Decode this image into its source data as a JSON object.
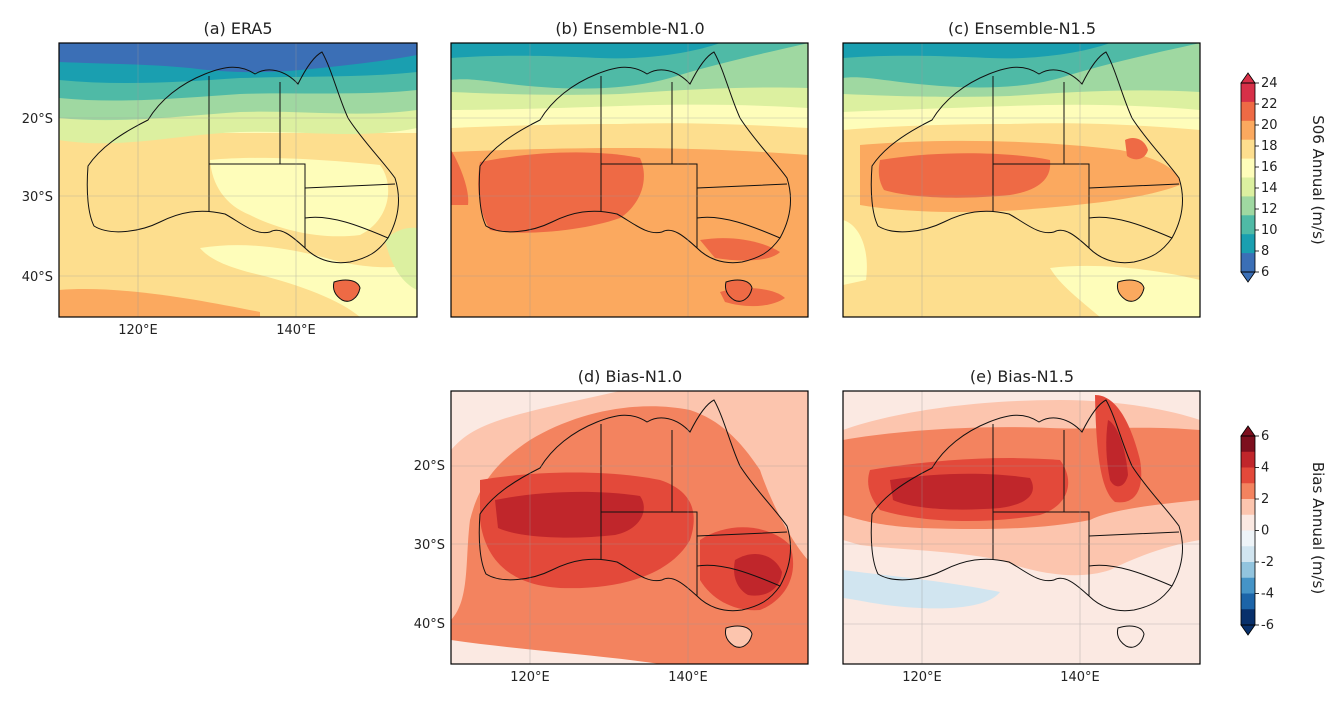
{
  "chart_data": [
    {
      "type": "heatmap",
      "panel": "a",
      "title": "(a) ERA5",
      "colorbar": "S06",
      "region": "Australia",
      "lon_range": [
        110,
        155
      ],
      "lat_range": [
        -45,
        -10
      ],
      "x_ticks": [
        "120°E",
        "140°E"
      ],
      "y_ticks": [
        "20°S",
        "30°S",
        "40°S"
      ],
      "value_range_ms": [
        6,
        20
      ],
      "features": [
        {
          "name": "northern coast",
          "value": 7
        },
        {
          "name": "inland plateau",
          "value": 16
        },
        {
          "name": "southern ocean",
          "value": 18
        }
      ]
    },
    {
      "type": "heatmap",
      "panel": "b",
      "title": "(b) Ensemble-N1.0",
      "colorbar": "S06",
      "x_ticks": [],
      "y_ticks": [],
      "value_range_ms": [
        10,
        23
      ],
      "features": [
        {
          "name": "western interior maximum",
          "value": 21
        },
        {
          "name": "southern ocean",
          "value": 19
        }
      ]
    },
    {
      "type": "heatmap",
      "panel": "c",
      "title": "(c) Ensemble-N1.5",
      "colorbar": "S06",
      "x_ticks": [],
      "y_ticks": [],
      "value_range_ms": [
        8,
        22
      ],
      "features": [
        {
          "name": "central interior maximum",
          "value": 20
        },
        {
          "name": "southern ocean",
          "value": 16
        }
      ]
    },
    {
      "type": "heatmap",
      "panel": "d",
      "title": "(d) Bias-N1.0",
      "colorbar": "Bias",
      "x_ticks": [
        "120°E",
        "140°E"
      ],
      "y_ticks": [
        "20°S",
        "30°S",
        "40°S"
      ],
      "value_range_ms": [
        0,
        5
      ],
      "features": [
        {
          "name": "central band",
          "value": 5
        },
        {
          "name": "south-east",
          "value": 5
        },
        {
          "name": "surrounding ocean",
          "value": 2
        }
      ]
    },
    {
      "type": "heatmap",
      "panel": "e",
      "title": "(e) Bias-N1.5",
      "colorbar": "Bias",
      "x_ticks": [
        "120°E",
        "140°E"
      ],
      "y_ticks": [],
      "value_range_ms": [
        -1,
        5
      ],
      "features": [
        {
          "name": "central band",
          "value": 5
        },
        {
          "name": "Cape York",
          "value": 5
        },
        {
          "name": "southern ocean",
          "value": -1
        }
      ]
    }
  ],
  "colorbars": [
    {
      "id": "S06",
      "label": "S06 Annual (m/s)",
      "ticks": [
        "6",
        "8",
        "10",
        "12",
        "14",
        "16",
        "18",
        "20",
        "22",
        "24"
      ],
      "colors": [
        "#3b6fb6",
        "#1a9fb0",
        "#4fbaa6",
        "#9fd8a1",
        "#dcf0a0",
        "#fefdba",
        "#fdde8e",
        "#fba95f",
        "#ee6a45",
        "#d73048"
      ],
      "extend": "both"
    },
    {
      "id": "Bias",
      "label": "Bias Annual (m/s)",
      "ticks": [
        "6",
        "4",
        "2",
        "0",
        "-2",
        "-4",
        "-6"
      ],
      "colors": [
        "#08306b",
        "#1c64a8",
        "#4594c7",
        "#92c4de",
        "#d1e5f0",
        "#eef4f8",
        "#fbe9e2",
        "#fcc5ae",
        "#f3835f",
        "#e3493a",
        "#c0262b",
        "#7d0f1e"
      ],
      "extend": "both"
    }
  ]
}
